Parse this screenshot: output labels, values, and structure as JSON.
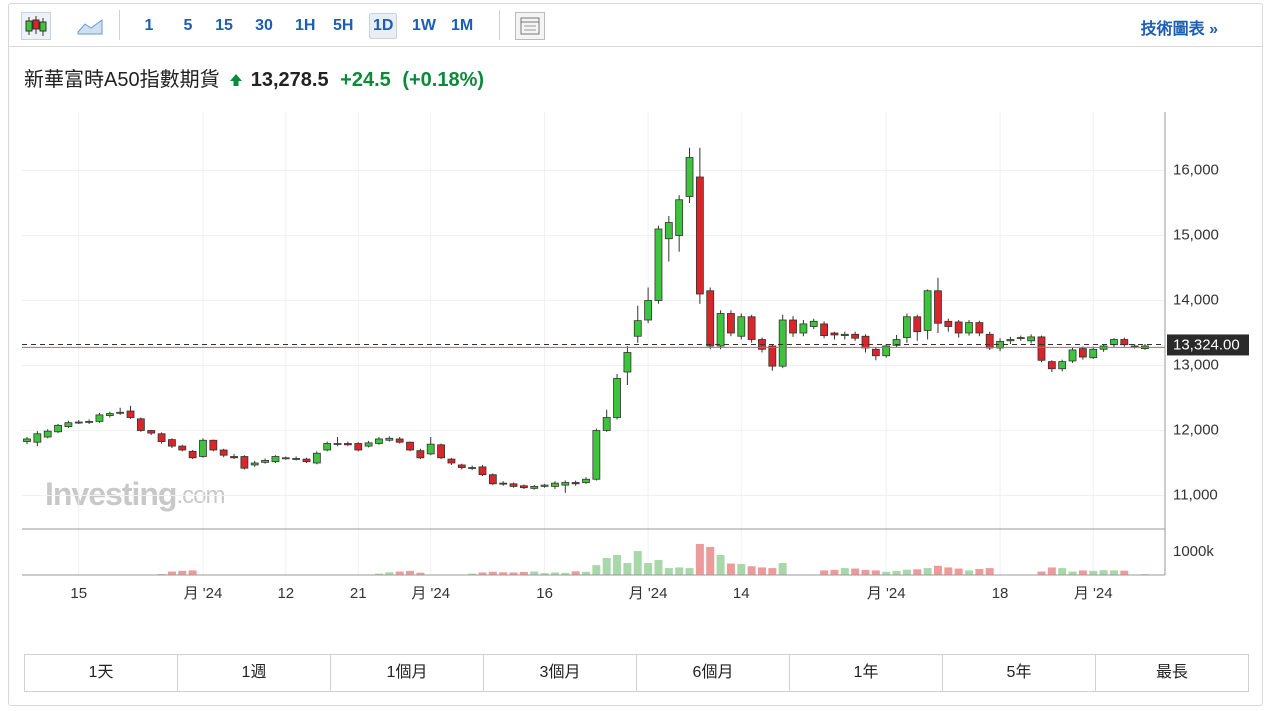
{
  "toolbar": {
    "intervals": [
      "1",
      "5",
      "15",
      "30",
      "1H",
      "5H",
      "1D",
      "1W",
      "1M"
    ],
    "link": "技術圖表 »"
  },
  "header": {
    "name": "新華富時A50指數期貨",
    "price": {
      "value": 13278.5,
      "label": "13,278.5"
    },
    "change": "+24.5",
    "change_percent": "(+0.18%)"
  },
  "chart_data": {
    "type": "candlestick",
    "categories": [
      null,
      null,
      null,
      null,
      null,
      "15",
      null,
      null,
      null,
      null,
      null,
      null,
      null,
      null,
      null,
      null,
      null,
      "月 '24",
      null,
      null,
      null,
      null,
      null,
      null,
      null,
      "12",
      null,
      null,
      null,
      null,
      null,
      null,
      "21",
      null,
      null,
      null,
      null,
      null,
      null,
      "月 '24",
      null,
      null,
      null,
      null,
      null,
      null,
      null,
      null,
      null,
      null,
      "16",
      null,
      null,
      null,
      null,
      null,
      null,
      null,
      null,
      null,
      "月 '24",
      null,
      null,
      null,
      null,
      null,
      null,
      null,
      null,
      "14",
      null,
      null,
      null,
      null,
      null,
      null,
      null,
      null,
      null,
      null,
      null,
      null,
      null,
      "月 '24",
      null,
      null,
      null,
      null,
      null,
      null,
      null,
      null,
      null,
      null,
      "18",
      null,
      null,
      null,
      null,
      null,
      null,
      null,
      null,
      "月 '24",
      null,
      null,
      null,
      null,
      null
    ],
    "open": [
      11830,
      11820,
      11900,
      11980,
      12060,
      12120,
      12130,
      12140,
      12230,
      12270,
      12300,
      12180,
      12000,
      11950,
      11860,
      11760,
      11680,
      11600,
      11850,
      11700,
      11600,
      11600,
      11470,
      11510,
      11520,
      11580,
      11560,
      11560,
      11500,
      11700,
      11790,
      11800,
      11800,
      11760,
      11800,
      11850,
      11870,
      11820,
      11690,
      11640,
      11780,
      11560,
      11470,
      11420,
      11440,
      11320,
      11190,
      11180,
      11150,
      11110,
      11140,
      11140,
      11160,
      11200,
      11200,
      11250,
      12000,
      12200,
      12900,
      13450,
      13700,
      14000,
      14950,
      15000,
      15600,
      15900,
      14150,
      13300,
      13800,
      13450,
      13750,
      13400,
      13300,
      12990,
      13700,
      13500,
      13600,
      13640,
      13500,
      13460,
      13480,
      13450,
      13250,
      13150,
      13310,
      13430,
      13750,
      13540,
      14150,
      13680,
      13670,
      13500,
      13660,
      13480,
      13270,
      13380,
      13420,
      13380,
      13440,
      13060,
      12950,
      13070,
      13260,
      13120,
      13250,
      13320,
      13400,
      13300,
      13260
    ],
    "high": [
      11900,
      11990,
      12020,
      12100,
      12150,
      12160,
      12170,
      12270,
      12290,
      12350,
      12380,
      12200,
      12010,
      11970,
      11880,
      11780,
      11700,
      11880,
      11860,
      11720,
      11640,
      11620,
      11530,
      11570,
      11620,
      11600,
      11600,
      11580,
      11680,
      11830,
      11900,
      11830,
      11820,
      11840,
      11900,
      11910,
      11900,
      11830,
      11720,
      11900,
      11800,
      11580,
      11490,
      11460,
      11470,
      11340,
      11220,
      11200,
      11170,
      11160,
      11180,
      11220,
      11230,
      11230,
      11280,
      12030,
      12320,
      12870,
      13300,
      13920,
      14200,
      15150,
      15300,
      15620,
      16350,
      16350,
      14200,
      13850,
      13850,
      13800,
      13780,
      13430,
      13320,
      13780,
      13760,
      13700,
      13720,
      13680,
      13520,
      13520,
      13520,
      13480,
      13280,
      13330,
      13470,
      13800,
      13780,
      14170,
      14350,
      13720,
      13700,
      13700,
      13690,
      13520,
      13420,
      13440,
      13460,
      13480,
      13460,
      13080,
      13090,
      13280,
      13290,
      13290,
      13330,
      13420,
      13430,
      13330,
      13330
    ],
    "low": [
      11790,
      11760,
      11880,
      11960,
      12040,
      12100,
      12100,
      12120,
      12200,
      12240,
      12180,
      11980,
      11930,
      11800,
      11730,
      11680,
      11560,
      11580,
      11680,
      11590,
      11560,
      11400,
      11440,
      11490,
      11500,
      11550,
      11540,
      11500,
      11480,
      11680,
      11760,
      11760,
      11680,
      11740,
      11780,
      11830,
      11800,
      11680,
      11560,
      11620,
      11560,
      11470,
      11400,
      11390,
      11300,
      11160,
      11150,
      11120,
      11100,
      11090,
      11120,
      11100,
      11040,
      11150,
      11180,
      11230,
      11980,
      12170,
      12700,
      13350,
      13650,
      13950,
      14600,
      14750,
      15500,
      13950,
      13250,
      13250,
      13450,
      13400,
      13350,
      13200,
      12920,
      12960,
      13440,
      13450,
      13560,
      13420,
      13400,
      13400,
      13380,
      13200,
      13080,
      13120,
      13280,
      13350,
      13380,
      13400,
      13500,
      13520,
      13430,
      13460,
      13450,
      13240,
      13220,
      13330,
      13380,
      13340,
      13050,
      12900,
      12910,
      13040,
      13090,
      13100,
      13210,
      13280,
      13290,
      13260,
      13240
    ],
    "close": [
      11870,
      11950,
      11990,
      12080,
      12120,
      12130,
      12140,
      12240,
      12260,
      12280,
      12200,
      12000,
      11960,
      11830,
      11760,
      11700,
      11580,
      11850,
      11700,
      11620,
      11580,
      11420,
      11500,
      11540,
      11600,
      11580,
      11570,
      11520,
      11650,
      11800,
      11800,
      11780,
      11700,
      11810,
      11870,
      11880,
      11820,
      11700,
      11580,
      11790,
      11580,
      11500,
      11430,
      11430,
      11320,
      11180,
      11180,
      11140,
      11120,
      11140,
      11160,
      11190,
      11200,
      11180,
      11250,
      12000,
      12200,
      12800,
      13200,
      13690,
      14000,
      15100,
      15200,
      15550,
      16200,
      14100,
      13300,
      13800,
      13500,
      13750,
      13400,
      13250,
      12990,
      13700,
      13500,
      13640,
      13680,
      13460,
      13470,
      13480,
      13420,
      13270,
      13150,
      13300,
      13400,
      13750,
      13520,
      14150,
      13650,
      13600,
      13500,
      13660,
      13500,
      13270,
      13370,
      13400,
      13430,
      13440,
      13080,
      12950,
      13060,
      13240,
      13130,
      13250,
      13300,
      13400,
      13320,
      13300,
      13300
    ],
    "volume": [
      null,
      null,
      null,
      null,
      null,
      null,
      null,
      null,
      null,
      null,
      null,
      null,
      null,
      40000,
      150000,
      180000,
      200000,
      null,
      null,
      null,
      null,
      null,
      null,
      null,
      null,
      null,
      null,
      null,
      null,
      null,
      null,
      null,
      null,
      null,
      60000,
      120000,
      150000,
      180000,
      100000,
      null,
      null,
      null,
      null,
      60000,
      110000,
      140000,
      120000,
      110000,
      130000,
      150000,
      80000,
      110000,
      90000,
      160000,
      140000,
      430000,
      740000,
      870000,
      520000,
      1040000,
      520000,
      650000,
      300000,
      330000,
      300000,
      1350000,
      1220000,
      870000,
      500000,
      480000,
      380000,
      330000,
      300000,
      520000,
      null,
      null,
      null,
      200000,
      220000,
      300000,
      280000,
      220000,
      200000,
      140000,
      180000,
      230000,
      250000,
      300000,
      400000,
      330000,
      280000,
      200000,
      260000,
      300000,
      null,
      null,
      null,
      null,
      150000,
      330000,
      300000,
      150000,
      200000,
      180000,
      210000,
      200000,
      190000,
      null,
      40000
    ],
    "ylim": [
      10500,
      16900
    ],
    "yticks": [
      {
        "value": 11000,
        "label": "11,000"
      },
      {
        "value": 12000,
        "label": "12,000"
      },
      {
        "value": 13000,
        "label": "13,000"
      },
      {
        "value": 14000,
        "label": "14,000"
      },
      {
        "value": 15000,
        "label": "15,000"
      },
      {
        "value": 16000,
        "label": "16,000"
      }
    ],
    "vlim": [
      0,
      2000000
    ],
    "vticks": [
      {
        "value": 1000000,
        "label": "1000k"
      }
    ],
    "last_price": {
      "value": 13324,
      "label": "13,324.00"
    },
    "up_color": "#3cc43c",
    "down_color": "#d8262b",
    "up_volume_color": "#a8d8aa",
    "down_volume_color": "#ee9a9a",
    "grid": true,
    "watermark": {
      "brand": "Investing",
      "suffix": ".com"
    }
  },
  "ranges": [
    "1天",
    "1週",
    "1個月",
    "3個月",
    "6個月",
    "1年",
    "5年",
    "最長"
  ]
}
